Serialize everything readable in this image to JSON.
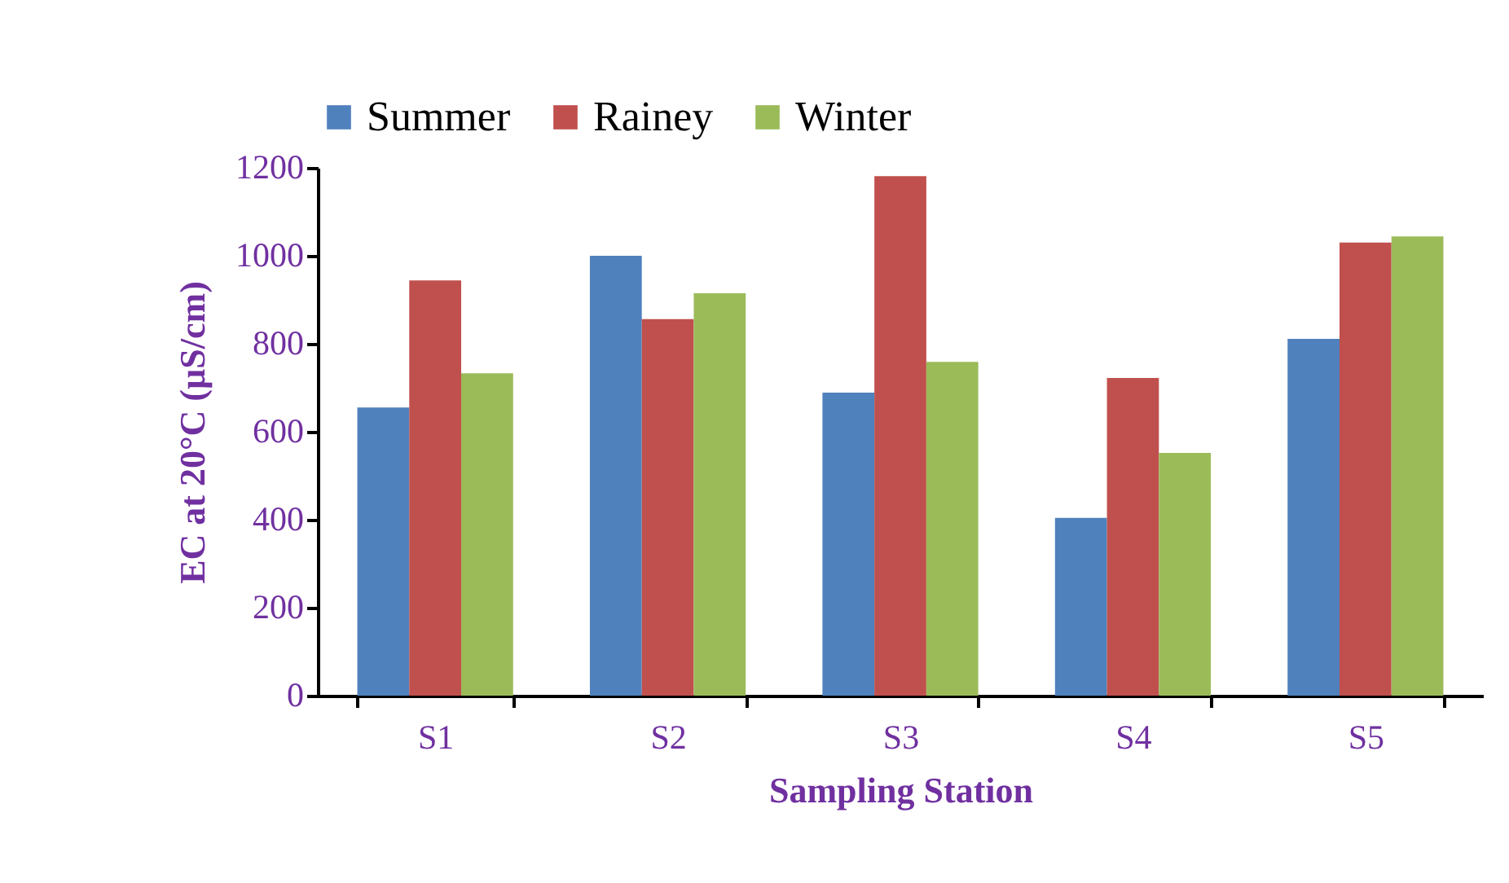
{
  "chart_data": {
    "type": "bar",
    "xlabel": "Sampling Station",
    "ylabel": "EC at 20°C (µS/cm)",
    "categories": [
      "S1",
      "S2",
      "S3",
      "S4",
      "S5"
    ],
    "series": [
      {
        "name": "Summer",
        "color": "#4f81bd",
        "values": [
          655,
          1000,
          689,
          404,
          811
        ]
      },
      {
        "name": "Rainey",
        "color": "#c0504d",
        "values": [
          944,
          856,
          1181,
          722,
          1030
        ]
      },
      {
        "name": "Winter",
        "color": "#9bbb59",
        "values": [
          733,
          915,
          759,
          552,
          1044
        ]
      }
    ],
    "ylim": [
      0,
      1200
    ],
    "yticks": [
      0,
      200,
      400,
      600,
      800,
      1000,
      1200
    ],
    "grid": false,
    "legend": "top"
  }
}
